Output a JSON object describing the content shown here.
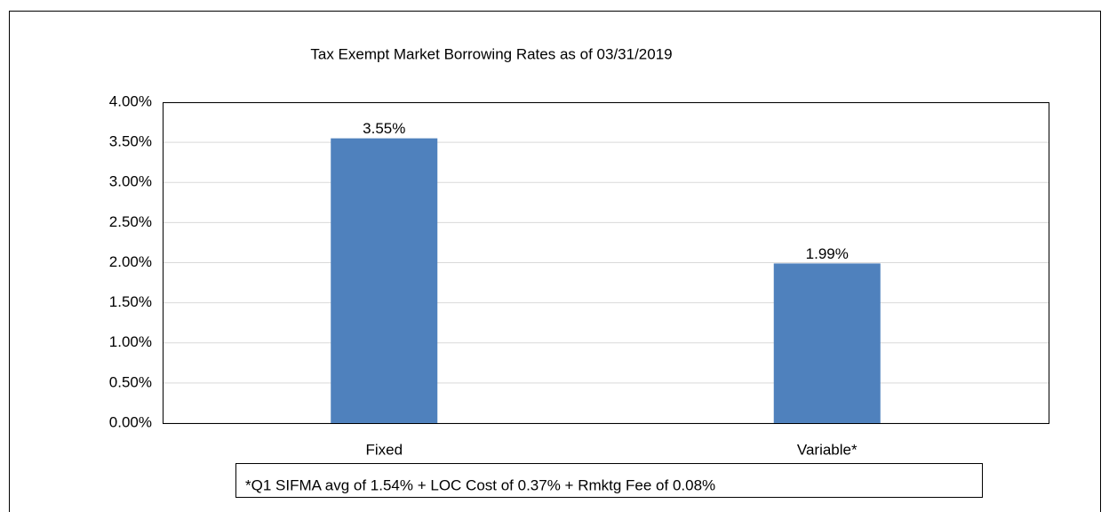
{
  "chart_data": {
    "type": "bar",
    "title": "Tax Exempt Market Borrowing Rates as of 03/31/2019",
    "categories": [
      "Fixed",
      "Variable*"
    ],
    "values": [
      3.55,
      1.99
    ],
    "value_labels": [
      "3.55%",
      "1.99%"
    ],
    "color": "#4f81bd",
    "ylim": [
      0,
      4
    ],
    "yticks": [
      {
        "value": 0,
        "label": "0.00%"
      },
      {
        "value": 0.5,
        "label": "0.50%"
      },
      {
        "value": 1,
        "label": "1.00%"
      },
      {
        "value": 1.5,
        "label": "1.50%"
      },
      {
        "value": 2,
        "label": "2.00%"
      },
      {
        "value": 2.5,
        "label": "2.50%"
      },
      {
        "value": 3,
        "label": "3.00%"
      },
      {
        "value": 3.5,
        "label": "3.50%"
      },
      {
        "value": 4,
        "label": "4.00%"
      }
    ],
    "grid": true,
    "annotation": "*Q1 SIFMA avg of 1.54% + LOC Cost of 0.37% + Rmktg Fee of 0.08%"
  }
}
